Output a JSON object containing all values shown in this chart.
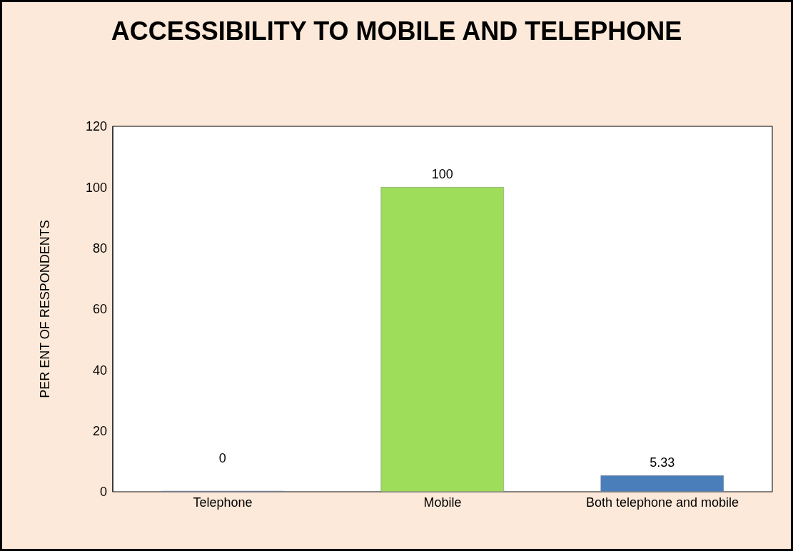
{
  "chart_data": {
    "type": "bar",
    "title": "ACCESSIBILITY TO MOBILE AND TELEPHONE",
    "ylabel": "PER ENT OF RESPONDENTS",
    "categories": [
      "Telephone",
      "Mobile",
      "Both telephone and mobile"
    ],
    "values": [
      0,
      100,
      5.33
    ],
    "colors": [
      "#4a7ebb",
      "#9ddd5a",
      "#4a7ebb"
    ],
    "ylim": [
      0,
      120
    ],
    "yticks": [
      0,
      20,
      40,
      60,
      80,
      100,
      120
    ],
    "grid": false,
    "data_labels": true
  }
}
